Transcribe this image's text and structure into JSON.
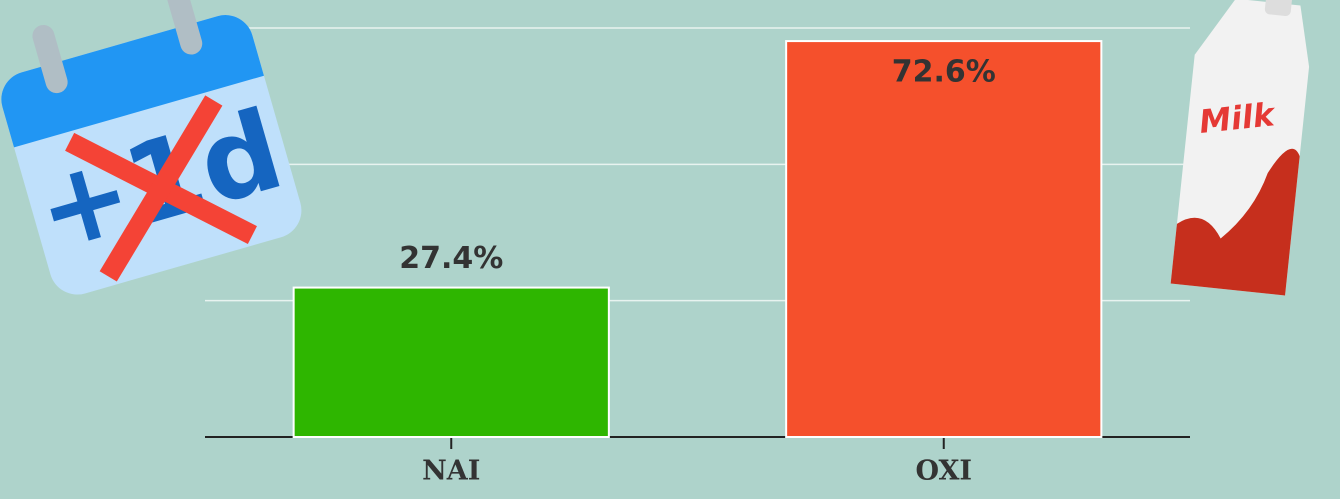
{
  "chart_data": {
    "type": "bar",
    "categories": [
      "NAI",
      "OXI"
    ],
    "values": [
      27.4,
      72.6
    ],
    "value_labels": [
      "27.4%",
      "72.6%"
    ],
    "colors": [
      "#2eb600",
      "#f5502c"
    ],
    "ylim": [
      0,
      75
    ],
    "yticks": [
      25,
      50,
      75
    ],
    "grid": true,
    "annotations": [
      "+1d",
      "Milk"
    ]
  }
}
